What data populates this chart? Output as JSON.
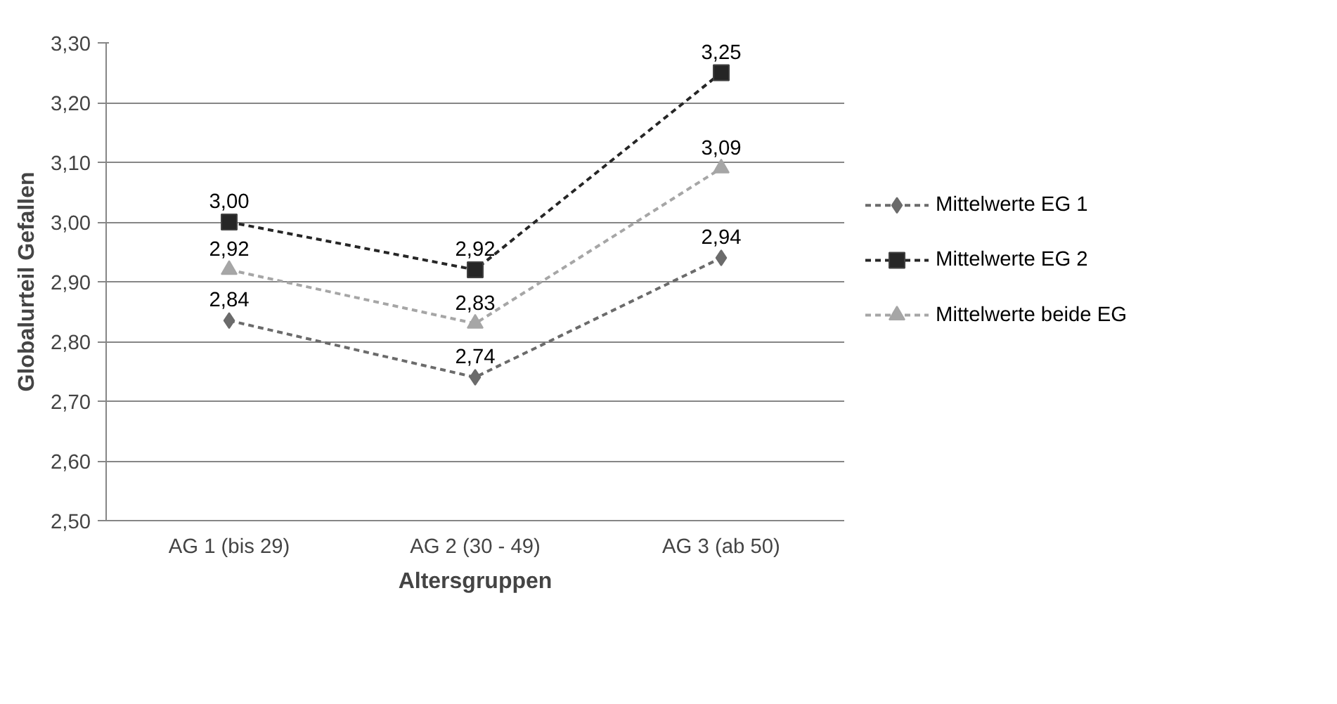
{
  "chart_data": {
    "type": "line",
    "xlabel": "Altersgruppen",
    "ylabel": "Globalurteil Gefallen",
    "categories": [
      "AG 1 (bis 29)",
      "AG 2 (30 - 49)",
      "AG 3 (ab 50)"
    ],
    "series": [
      {
        "name": "Mittelwerte EG 1",
        "color": "#6b6b6b",
        "marker": "diamond",
        "values": [
          2.835,
          2.74,
          2.94
        ],
        "value_labels": [
          "2,84",
          "2,74",
          "2,94"
        ]
      },
      {
        "name": "Mittelwerte EG 2",
        "color": "#262626",
        "marker": "square",
        "values": [
          3.0,
          2.92,
          3.25
        ],
        "value_labels": [
          "3,00",
          "2,92",
          "3,25"
        ]
      },
      {
        "name": "Mittelwerte beide EG",
        "color": "#a6a6a6",
        "marker": "triangle",
        "values": [
          2.92,
          2.83,
          3.09
        ],
        "value_labels": [
          "2,92",
          "2,83",
          "3,09"
        ]
      }
    ],
    "ylim": [
      2.5,
      3.3
    ],
    "yticks": [
      {
        "value": 2.5,
        "label": "2,50"
      },
      {
        "value": 2.6,
        "label": "2,60"
      },
      {
        "value": 2.7,
        "label": "2,70"
      },
      {
        "value": 2.8,
        "label": "2,80"
      },
      {
        "value": 2.9,
        "label": "2,90"
      },
      {
        "value": 3.0,
        "label": "3,00"
      },
      {
        "value": 3.1,
        "label": "3,10"
      },
      {
        "value": 3.2,
        "label": "3,20"
      },
      {
        "value": 3.3,
        "label": "3,30"
      }
    ],
    "grid": "y",
    "legend": "right",
    "line_style": "dashed"
  }
}
